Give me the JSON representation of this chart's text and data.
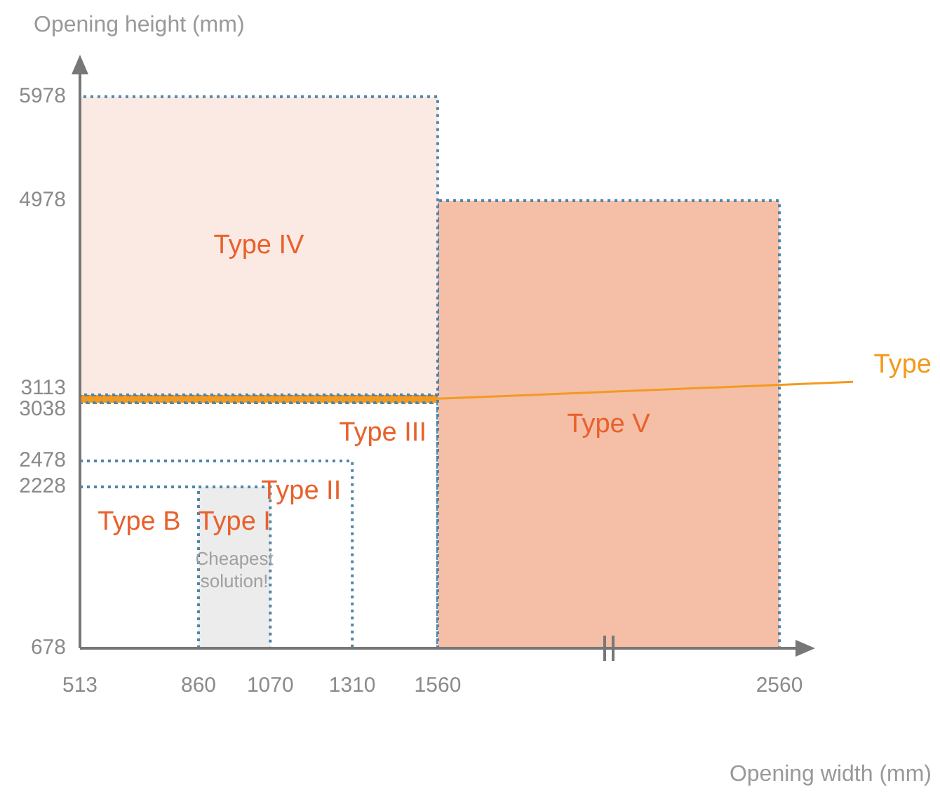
{
  "chart_data": {
    "type": "area",
    "xlabel": "Opening width (mm)",
    "ylabel": "Opening height (mm)",
    "xlim": [
      513,
      2640
    ],
    "xticks": [
      513,
      860,
      1070,
      1310,
      1560,
      2560
    ],
    "ylim": [
      678,
      6300
    ],
    "yticks": [
      678,
      2228,
      2478,
      3038,
      3113,
      4978,
      5978
    ],
    "grid": false,
    "line_style": "dotted",
    "marker": "none",
    "series": [
      {
        "name": "Type IV",
        "color": "#fbe9e3",
        "x": [
          513,
          513,
          1560,
          1560,
          513
        ],
        "values": [
          3113,
          5978,
          5978,
          3113,
          3113
        ]
      },
      {
        "name": "Type V",
        "color": "#f5bea7",
        "x": [
          1560,
          1560,
          2560,
          2560,
          1560
        ],
        "values": [
          678,
          4978,
          4978,
          678,
          678
        ]
      },
      {
        "name": "Type",
        "color": "#f39a1e",
        "x": [
          513,
          513,
          1560,
          1560,
          513
        ],
        "values": [
          3038,
          3113,
          3113,
          3038,
          3038
        ]
      },
      {
        "name": "Type III",
        "type": "line",
        "color": "#4f86a8",
        "x": [
          513,
          1560,
          1560
        ],
        "values": [
          3038,
          3038,
          678
        ]
      },
      {
        "name": "Type II",
        "type": "line",
        "color": "#4f86a8",
        "x": [
          513,
          1310,
          1310
        ],
        "values": [
          2478,
          2478,
          678
        ]
      },
      {
        "name": "Type I",
        "color": "#ececec",
        "x": [
          860,
          860,
          1070,
          1070,
          860
        ],
        "values": [
          678,
          2228,
          2228,
          678,
          678
        ]
      },
      {
        "name": "Type B",
        "type": "line",
        "color": "#4f86a8",
        "x": [
          513,
          860
        ],
        "values": [
          2228,
          2228
        ]
      }
    ],
    "annotations": [
      "Cheapest solution!"
    ]
  }
}
